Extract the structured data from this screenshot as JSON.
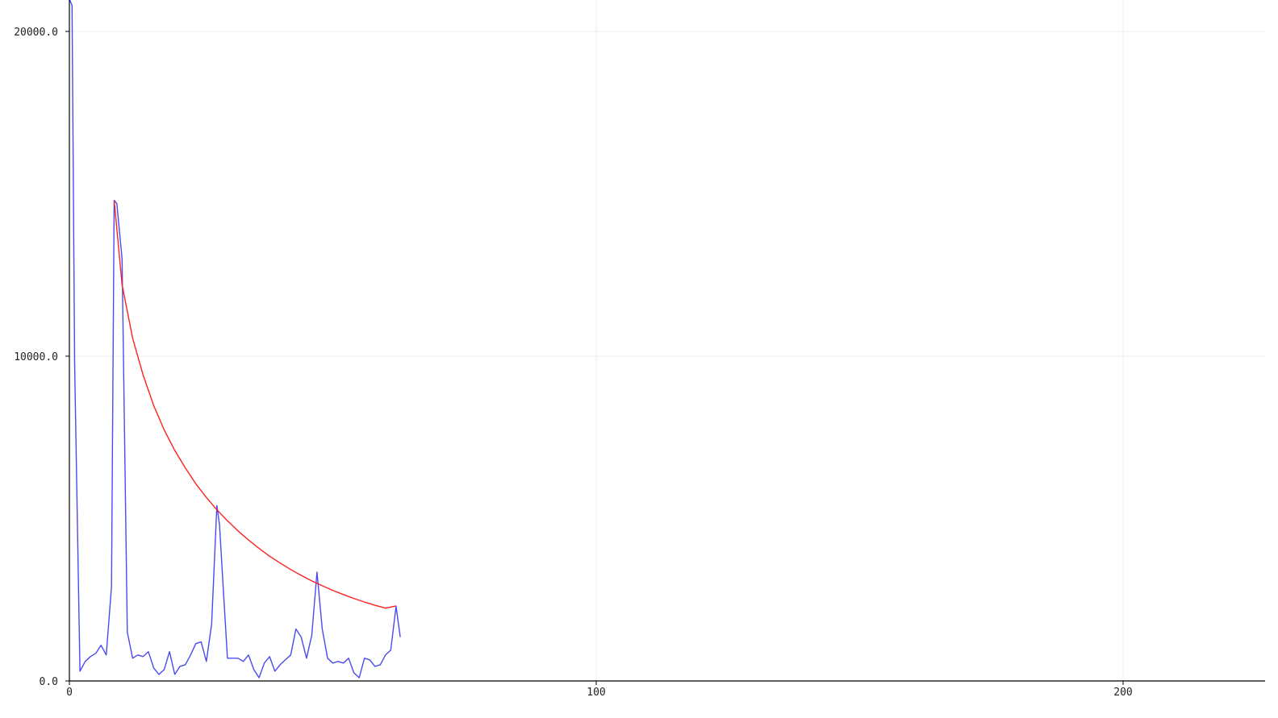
{
  "chart_data": {
    "type": "line",
    "title": "",
    "xlabel": "",
    "ylabel": "",
    "xlim": [
      0,
      227
    ],
    "ylim": [
      0,
      21000
    ],
    "grid": true,
    "x_ticks": [
      {
        "value": 0,
        "label": "0"
      },
      {
        "value": 100,
        "label": "100"
      },
      {
        "value": 200,
        "label": "200"
      }
    ],
    "y_ticks": [
      {
        "value": 0,
        "label": "0.0"
      },
      {
        "value": 10000,
        "label": "10000.0"
      },
      {
        "value": 20000,
        "label": "20000.0"
      }
    ],
    "series": [
      {
        "color": "#4a4af0",
        "x": [
          0,
          0.5,
          1,
          2,
          3,
          4,
          5,
          6,
          7,
          8,
          8.5,
          9,
          10,
          11,
          12,
          13,
          14,
          15,
          16,
          17,
          18,
          19,
          20,
          21,
          22,
          23,
          24,
          25,
          26,
          27,
          28,
          28.5,
          29,
          30,
          31,
          32,
          33,
          34,
          35,
          36,
          37,
          38,
          39,
          40,
          41,
          42,
          43,
          44,
          45,
          46,
          47,
          48,
          49,
          50,
          51,
          52,
          53,
          54,
          55,
          56,
          57,
          58,
          59,
          60,
          61,
          62,
          62.8
        ],
        "y": [
          21000,
          20800,
          9800,
          300,
          600,
          750,
          850,
          1100,
          800,
          2900,
          14800,
          14700,
          13000,
          1500,
          700,
          800,
          750,
          900,
          400,
          200,
          350,
          900,
          200,
          450,
          500,
          800,
          1150,
          1200,
          600,
          1750,
          5400,
          4800,
          3400,
          700,
          700,
          700,
          600,
          800,
          350,
          100,
          550,
          750,
          300,
          500,
          650,
          800,
          1600,
          1350,
          700,
          1400,
          3350,
          1600,
          700,
          550,
          600,
          550,
          700,
          250,
          100,
          700,
          650,
          450,
          500,
          800,
          950,
          2300,
          1350
        ]
      },
      {
        "color": "#ff2020",
        "type": "curve",
        "x": [
          8.5,
          10,
          12,
          14,
          16,
          18,
          20,
          22,
          24,
          26,
          28,
          30,
          32,
          34,
          36,
          38,
          40,
          42,
          44,
          46,
          48,
          50,
          52,
          54,
          56,
          58,
          60,
          62
        ],
        "y": [
          14800,
          12200,
          10550,
          9420,
          8480,
          7730,
          7100,
          6560,
          6070,
          5650,
          5270,
          4930,
          4620,
          4340,
          4080,
          3840,
          3630,
          3430,
          3250,
          3080,
          2930,
          2790,
          2660,
          2540,
          2430,
          2330,
          2240,
          2310
        ]
      }
    ]
  }
}
